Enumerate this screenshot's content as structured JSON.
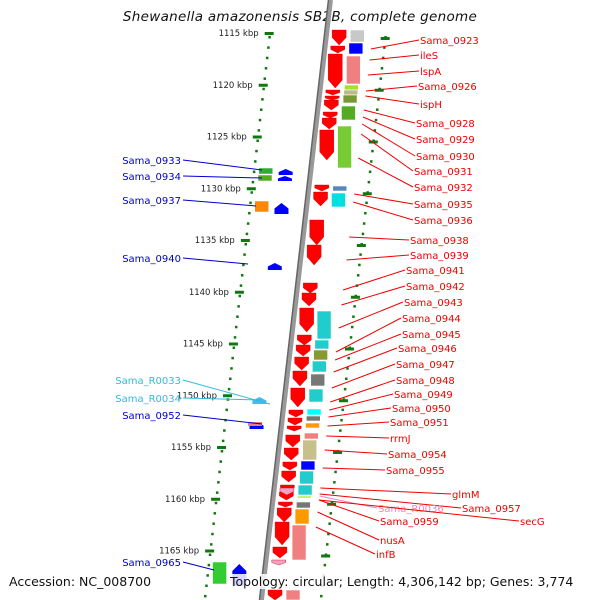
{
  "title": "Shewanella amazonensis SB2B, complete genome",
  "footer": {
    "accession": "Accession: NC_008700",
    "summary": "Topology: circular; Length: 4,306,142 bp; Genes: 3,774"
  },
  "colors": {
    "forward_label": "#0000cc",
    "reverse_label": "#ee0000",
    "rna_label_cyan": "#33bbdd",
    "rna_label_pink": "#ee88bb",
    "axis": "#888888",
    "tick": "#117711"
  },
  "scale": {
    "ticks": [
      {
        "label": "1115 kbp",
        "kbp": 1115
      },
      {
        "label": "1120 kbp",
        "kbp": 1120
      },
      {
        "label": "1125 kbp",
        "kbp": 1125
      },
      {
        "label": "1130 kbp",
        "kbp": 1130
      },
      {
        "label": "1135 kbp",
        "kbp": 1135
      },
      {
        "label": "1140 kbp",
        "kbp": 1140
      },
      {
        "label": "1145 kbp",
        "kbp": 1145
      },
      {
        "label": "1150 kbp",
        "kbp": 1150
      },
      {
        "label": "1155 kbp",
        "kbp": 1155
      },
      {
        "label": "1160 kbp",
        "kbp": 1160
      },
      {
        "label": "1165 kbp",
        "kbp": 1165
      }
    ]
  },
  "left_labels": [
    {
      "name": "Sama_0933",
      "kind": "forward"
    },
    {
      "name": "Sama_0934",
      "kind": "forward"
    },
    {
      "name": "Sama_0937",
      "kind": "forward"
    },
    {
      "name": "Sama_0940",
      "kind": "forward"
    },
    {
      "name": "Sama_R0033",
      "kind": "rna"
    },
    {
      "name": "Sama_R0034",
      "kind": "rna"
    },
    {
      "name": "Sama_0952",
      "kind": "forward"
    },
    {
      "name": "Sama_0965",
      "kind": "forward"
    }
  ],
  "right_labels": [
    {
      "name": "Sama_0923",
      "kind": "reverse"
    },
    {
      "name": "ileS",
      "kind": "reverse"
    },
    {
      "name": "lspA",
      "kind": "reverse"
    },
    {
      "name": "Sama_0926",
      "kind": "reverse"
    },
    {
      "name": "ispH",
      "kind": "reverse"
    },
    {
      "name": "Sama_0928",
      "kind": "reverse"
    },
    {
      "name": "Sama_0929",
      "kind": "reverse"
    },
    {
      "name": "Sama_0930",
      "kind": "reverse"
    },
    {
      "name": "Sama_0931",
      "kind": "reverse"
    },
    {
      "name": "Sama_0932",
      "kind": "reverse"
    },
    {
      "name": "Sama_0935",
      "kind": "reverse"
    },
    {
      "name": "Sama_0936",
      "kind": "reverse"
    },
    {
      "name": "Sama_0938",
      "kind": "reverse"
    },
    {
      "name": "Sama_0939",
      "kind": "reverse"
    },
    {
      "name": "Sama_0941",
      "kind": "reverse"
    },
    {
      "name": "Sama_0942",
      "kind": "reverse"
    },
    {
      "name": "Sama_0943",
      "kind": "reverse"
    },
    {
      "name": "Sama_0944",
      "kind": "reverse"
    },
    {
      "name": "Sama_0945",
      "kind": "reverse"
    },
    {
      "name": "Sama_0946",
      "kind": "reverse"
    },
    {
      "name": "Sama_0947",
      "kind": "reverse"
    },
    {
      "name": "Sama_0948",
      "kind": "reverse"
    },
    {
      "name": "Sama_0949",
      "kind": "reverse"
    },
    {
      "name": "Sama_0950",
      "kind": "reverse"
    },
    {
      "name": "Sama_0951",
      "kind": "reverse"
    },
    {
      "name": "rrmJ",
      "kind": "reverse"
    },
    {
      "name": "Sama_0954",
      "kind": "reverse"
    },
    {
      "name": "Sama_0955",
      "kind": "reverse"
    },
    {
      "name": "glmM",
      "kind": "reverse"
    },
    {
      "name": "Sama_0957",
      "kind": "reverse"
    },
    {
      "name": "Sama_R0036",
      "kind": "rna"
    },
    {
      "name": "secG",
      "kind": "reverse"
    },
    {
      "name": "Sama_0959",
      "kind": "reverse"
    },
    {
      "name": "nusA",
      "kind": "reverse"
    },
    {
      "name": "infB",
      "kind": "reverse"
    }
  ]
}
